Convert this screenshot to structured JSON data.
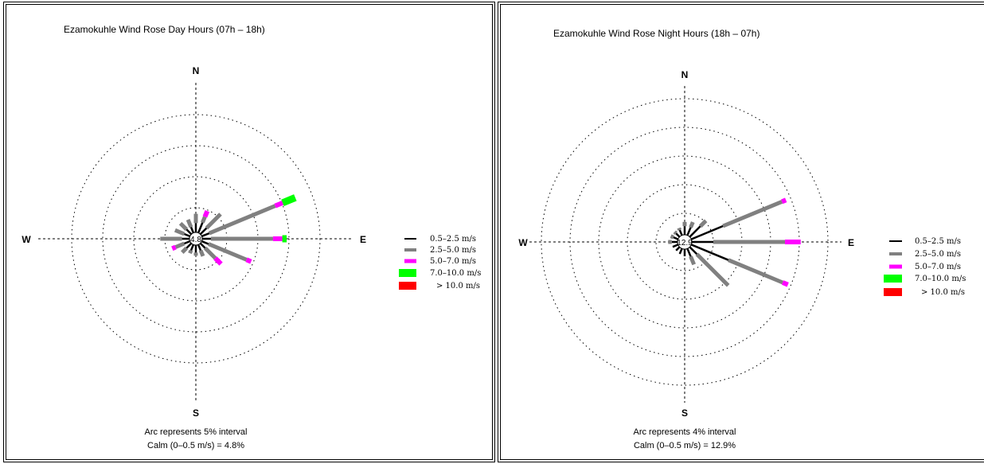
{
  "chart_data": [
    {
      "type": "wind-rose",
      "title": "Ezamokuhle Wind Rose Day Hours (07h – 18h)",
      "cardinals": {
        "n": "N",
        "e": "E",
        "s": "S",
        "w": "W"
      },
      "arc_interval_pct": 5,
      "ring_count": 4,
      "calm_center_label": "4.8",
      "arc_note": "Arc represents 5% interval",
      "calm_note": "Calm (0–0.5 m/s) = 4.8%",
      "direction_bins_deg": [
        0,
        22.5,
        45,
        67.5,
        90,
        112.5,
        135,
        157.5,
        180,
        202.5,
        225,
        247.5,
        270,
        292.5,
        315,
        337.5
      ],
      "series": [
        {
          "name": "0.5–2.5 m/s",
          "values": [
            1.5,
            1.8,
            1.4,
            1.3,
            1.4,
            1.2,
            1.1,
            1.0,
            1.2,
            1.0,
            1.1,
            1.0,
            1.2,
            1.0,
            1.1,
            1.0
          ]
        },
        {
          "name": "2.5–5.0 m/s",
          "values": [
            1.5,
            1.0,
            3.2,
            11.5,
            10.0,
            6.6,
            2.3,
            1.0,
            0.5,
            0.5,
            1.0,
            1.5,
            3.5,
            1.6,
            1.4,
            1.3
          ]
        },
        {
          "name": "5.0–7.0 m/s",
          "values": [
            0,
            1.0,
            0,
            1.3,
            1.5,
            0.8,
            1.3,
            0,
            0,
            0,
            0,
            0.6,
            0,
            0,
            0,
            0
          ]
        },
        {
          "name": "7.0–10.0 m/s",
          "values": [
            0,
            0,
            0,
            2.2,
            0.7,
            0,
            0,
            0,
            0,
            0,
            0,
            0,
            0,
            0,
            0,
            0
          ]
        },
        {
          "name": "> 10.0 m/s",
          "values": [
            0,
            0,
            0,
            0,
            0,
            0,
            0,
            0,
            0,
            0,
            0,
            0,
            0,
            0,
            0,
            0
          ]
        }
      ]
    },
    {
      "type": "wind-rose",
      "title": "Ezamokuhle Wind Rose Night Hours (18h – 07h)",
      "cardinals": {
        "n": "N",
        "e": "E",
        "s": "S",
        "w": "W"
      },
      "arc_interval_pct": 4,
      "ring_count": 5,
      "calm_center_label": "12.9",
      "arc_note": "Arc represents 4% interval",
      "calm_note": "Calm (0–0.5 m/s) = 12.9%",
      "direction_bins_deg": [
        0,
        22.5,
        45,
        67.5,
        90,
        112.5,
        135,
        157.5,
        180,
        202.5,
        225,
        247.5,
        270,
        292.5,
        315,
        337.5
      ],
      "series": [
        {
          "name": "0.5–2.5 m/s",
          "values": [
            1.2,
            1.2,
            2.1,
            4.8,
            3.0,
            5.6,
            1.4,
            1.2,
            1.0,
            0.8,
            0.7,
            0.8,
            0.8,
            0.7,
            0.7,
            0.8
          ]
        },
        {
          "name": "2.5–5.0 m/s",
          "values": [
            0.6,
            0.8,
            1.1,
            8.9,
            10.0,
            8.2,
            6.2,
            1.2,
            0,
            0,
            0,
            0,
            0.5,
            0.4,
            0.3,
            0.3
          ]
        },
        {
          "name": "5.0–7.0 m/s",
          "values": [
            0,
            0,
            0,
            0.6,
            2.2,
            0.8,
            0,
            0,
            0,
            0,
            0,
            0,
            0,
            0,
            0,
            0
          ]
        },
        {
          "name": "7.0–10.0 m/s",
          "values": [
            0,
            0,
            0,
            0,
            0,
            0,
            0,
            0,
            0,
            0,
            0,
            0,
            0,
            0,
            0,
            0
          ]
        },
        {
          "name": "> 10.0 m/s",
          "values": [
            0,
            0,
            0,
            0,
            0,
            0,
            0,
            0,
            0,
            0,
            0,
            0,
            0,
            0,
            0,
            0
          ]
        }
      ]
    }
  ],
  "legend": [
    {
      "label": "0.5–2.5 m/s",
      "color": "#000000"
    },
    {
      "label": "2.5–5.0 m/s",
      "color": "#808080"
    },
    {
      "label": "5.0–7.0 m/s",
      "color": "#ff00ff"
    },
    {
      "label": "7.0–10.0 m/s",
      "color": "#00ff00"
    },
    {
      "label": "> 10.0 m/s",
      "color": "#ff0000"
    }
  ]
}
